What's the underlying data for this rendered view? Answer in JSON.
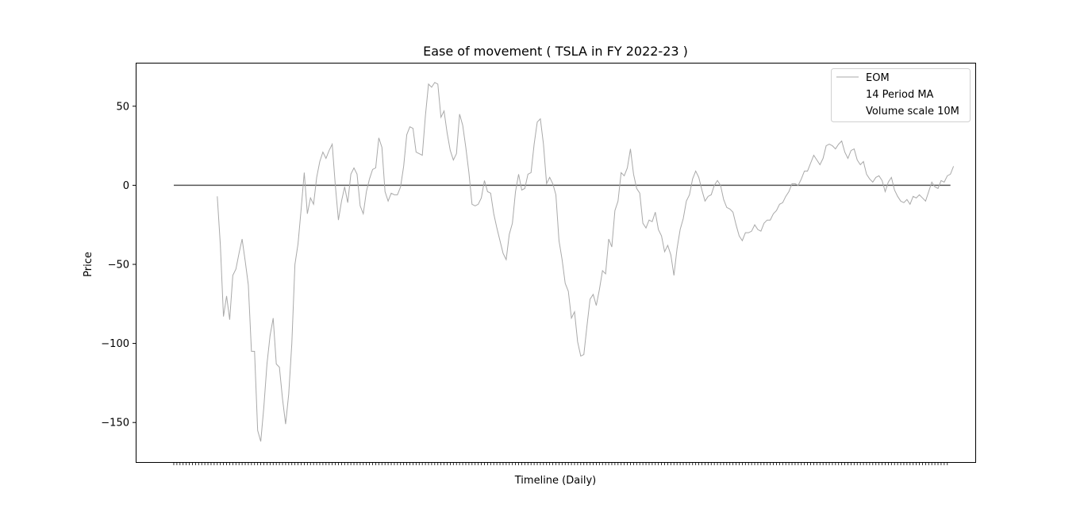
{
  "chart_data": {
    "type": "line",
    "title": "Ease of movement ( TSLA in FY 2022-23 )",
    "xlabel": "Timeline (Daily)",
    "ylabel": "Price",
    "ylim": [
      -175,
      77
    ],
    "xlim": [
      -12,
      258
    ],
    "yticks": [
      50,
      0,
      -50,
      -100,
      -150
    ],
    "ytick_labels": [
      "50",
      "0",
      "−50",
      "−100",
      "−150"
    ],
    "x_tick_count": 250,
    "grid": false,
    "legend_position": "top-right",
    "legend": [
      "EOM",
      "14 Period MA",
      "Volume scale 10M"
    ],
    "series": [
      {
        "name": "EOM",
        "color": "#a9a9a9",
        "start_index": 14,
        "values": [
          -7,
          -38,
          -83,
          -70,
          -85,
          -57,
          -53,
          -43,
          -34,
          -48,
          -63,
          -105,
          -105,
          -155,
          -162,
          -140,
          -113,
          -95,
          -84,
          -113,
          -115,
          -135,
          -151,
          -132,
          -100,
          -50,
          -37,
          -15,
          8,
          -18,
          -8,
          -12,
          5,
          15,
          21,
          17,
          22,
          26,
          0,
          -22,
          -10,
          -1,
          -11,
          7,
          11,
          7,
          -13,
          -18,
          -4,
          4,
          10,
          11,
          30,
          24,
          -4,
          -10,
          -5,
          -6,
          -6,
          -1,
          12,
          32,
          37,
          36,
          21,
          20,
          19,
          44,
          64,
          62,
          65,
          64,
          43,
          47,
          33,
          22,
          16,
          20,
          45,
          38,
          24,
          8,
          -12,
          -13,
          -12,
          -8,
          3,
          -4,
          -5,
          -18,
          -27,
          -35,
          -43,
          -47,
          -31,
          -24,
          -4,
          7,
          -3,
          -2,
          7,
          8,
          26,
          40,
          42,
          26,
          1,
          5,
          1,
          -6,
          -35,
          -47,
          -62,
          -67,
          -84,
          -80,
          -99,
          -108,
          -107,
          -89,
          -72,
          -69,
          -76,
          -66,
          -54,
          -56,
          -34,
          -39,
          -16,
          -10,
          8,
          6,
          11,
          23,
          7,
          -2,
          -5,
          -24,
          -27,
          -22,
          -23,
          -17,
          -28,
          -32,
          -42,
          -38,
          -44,
          -57,
          -40,
          -28,
          -21,
          -10,
          -6,
          4,
          9,
          5,
          -3,
          -10,
          -7,
          -6,
          0,
          3,
          0,
          -9,
          -14,
          -15,
          -17,
          -25,
          -32,
          -35,
          -30,
          -30,
          -29,
          -25,
          -28,
          -29,
          -24,
          -22,
          -22,
          -18,
          -16,
          -12,
          -11,
          -7,
          -4,
          1,
          1,
          0,
          4,
          9,
          9,
          14,
          19,
          16,
          13,
          17,
          25,
          26,
          25,
          23,
          26,
          28,
          21,
          17,
          22,
          23,
          16,
          13,
          15,
          7,
          4,
          2,
          5,
          6,
          3,
          -4,
          2,
          5,
          -3,
          -7,
          -10,
          -11,
          -9,
          -12,
          -7,
          -8,
          -6,
          -8,
          -10,
          -4,
          2,
          -1,
          -2,
          3,
          2,
          6,
          7,
          12
        ]
      },
      {
        "name": "14 Period MA",
        "color": "#ffffff",
        "values": []
      },
      {
        "name": "Volume scale 10M",
        "color": "#ffffff",
        "values": []
      }
    ],
    "zero_line": {
      "value": 0,
      "x_from": 0,
      "x_to": 250,
      "color": "#555555"
    }
  }
}
